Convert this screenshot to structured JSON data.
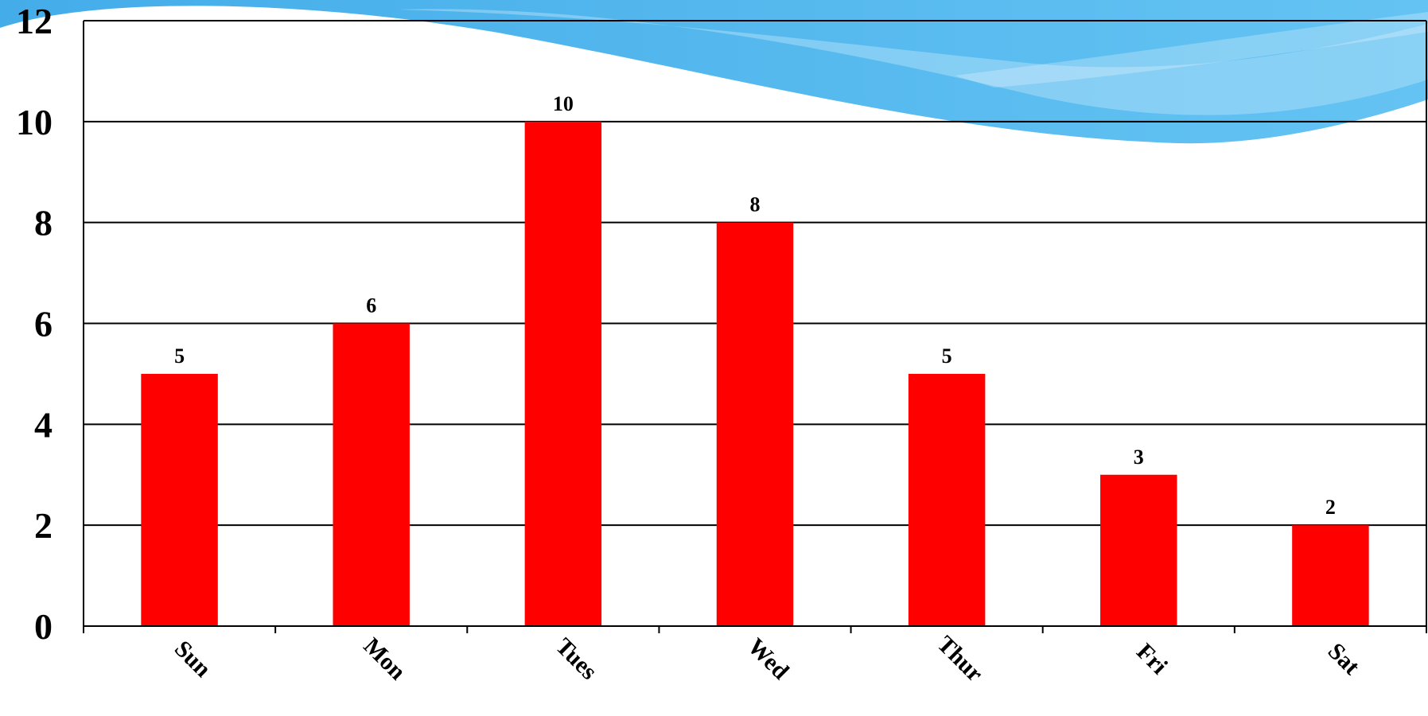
{
  "chart_data": {
    "type": "bar",
    "title": "",
    "xlabel": "",
    "ylabel": "",
    "categories": [
      "Sun",
      "Mon",
      "Tues",
      "Wed",
      "Thur",
      "Fri",
      "Sat"
    ],
    "values": [
      5,
      6,
      10,
      8,
      5,
      3,
      2
    ],
    "ylim": [
      0,
      12
    ],
    "yticks": [
      "0",
      "2",
      "4",
      "6",
      "8",
      "10",
      "12"
    ],
    "data_labels": [
      "5",
      "6",
      "10",
      "8",
      "5",
      "3",
      "2"
    ],
    "grid": true,
    "legend": "none",
    "bar_color": "#ff0000",
    "axis_color": "#000000",
    "decoration_colors": [
      "#4fb3ec",
      "#a9dcf7"
    ]
  }
}
